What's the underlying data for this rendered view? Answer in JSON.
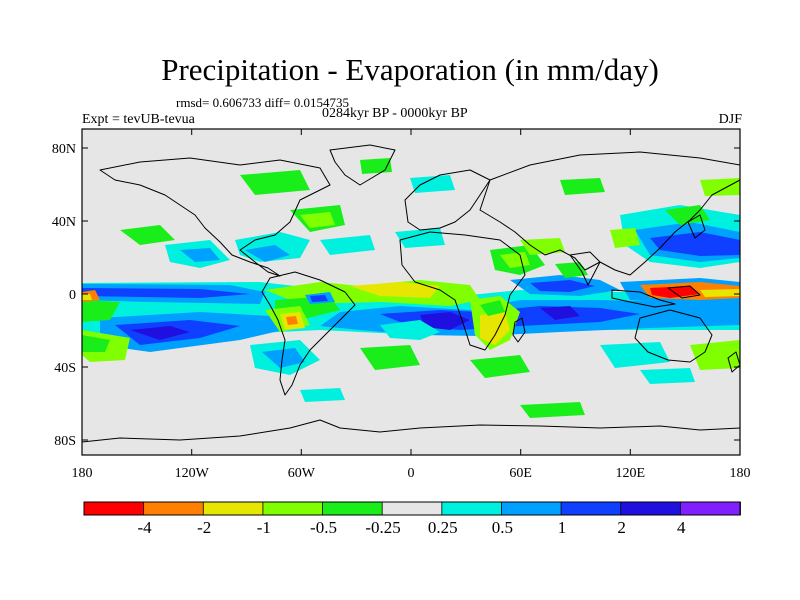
{
  "header": {
    "title": "Precipitation - Evaporation (in mm/day)",
    "stats": "rmsd= 0.606733 diff= 0.0154735",
    "period": "0284kyr BP - 0000kyr BP",
    "experiment": "Expt = tevUB-tevua",
    "season": "DJF"
  },
  "axes": {
    "lat_labels": [
      "80N",
      "40N",
      "0",
      "40S",
      "80S"
    ],
    "lon_labels": [
      "180",
      "120W",
      "60W",
      "0",
      "60E",
      "120E",
      "180"
    ]
  },
  "colorbar": {
    "labels": [
      "-4",
      "-2",
      "-1",
      "-0.5",
      "-0.25",
      "0.25",
      "0.5",
      "1",
      "2",
      "4"
    ],
    "colors": [
      "#ff0000",
      "#ff8000",
      "#e6e600",
      "#80ff00",
      "#1aee1a",
      "#e6e6e6",
      "#00f0e0",
      "#00a0ff",
      "#1040ff",
      "#2010e0",
      "#8020ff"
    ]
  },
  "palette": {
    "land_ocean_bg": "#e6e6e6",
    "coast": "#000000"
  }
}
